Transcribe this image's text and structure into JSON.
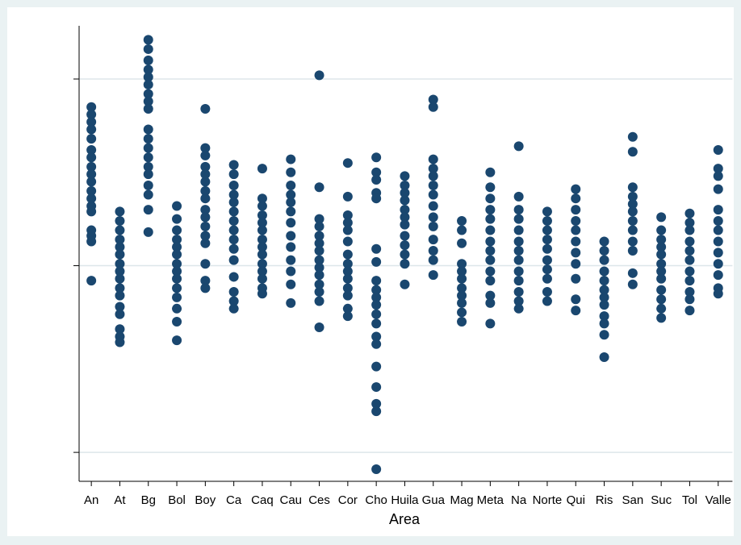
{
  "chart_data": {
    "type": "strip",
    "x_label": "Area",
    "color": "#1a476f",
    "grid": true,
    "categories": [
      "An",
      "At",
      "Bg",
      "Bol",
      "Boy",
      "Ca",
      "Caq",
      "Cau",
      "Ces",
      "Cor",
      "Cho",
      "Huila",
      "Gua",
      "Mag",
      "Meta",
      "Na",
      "Norte",
      "Qui",
      "Ris",
      "San",
      "Suc",
      "Tol",
      "Valle"
    ],
    "values": [
      [
        0.85,
        0.81,
        0.77,
        0.73,
        0.68,
        0.62,
        0.58,
        0.53,
        0.49,
        0.45,
        0.4,
        0.36,
        0.32,
        0.29,
        0.19,
        0.16,
        0.13,
        -0.08
      ],
      [
        0.29,
        0.24,
        0.19,
        0.14,
        0.1,
        0.06,
        0.01,
        -0.03,
        -0.07,
        -0.12,
        -0.16,
        -0.22,
        -0.26,
        -0.34,
        -0.38,
        -0.41
      ],
      [
        1.21,
        1.16,
        1.1,
        1.05,
        1.01,
        0.97,
        0.92,
        0.88,
        0.84,
        0.73,
        0.68,
        0.63,
        0.58,
        0.53,
        0.49,
        0.43,
        0.38,
        0.3,
        0.18
      ],
      [
        0.32,
        0.25,
        0.19,
        0.14,
        0.1,
        0.06,
        0.01,
        -0.03,
        -0.07,
        -0.12,
        -0.17,
        -0.23,
        -0.3,
        -0.4
      ],
      [
        0.84,
        0.63,
        0.59,
        0.53,
        0.49,
        0.45,
        0.4,
        0.36,
        0.3,
        0.26,
        0.21,
        0.16,
        0.12,
        0.01,
        -0.08,
        -0.12
      ],
      [
        0.54,
        0.49,
        0.43,
        0.38,
        0.34,
        0.29,
        0.24,
        0.19,
        0.14,
        0.09,
        0.03,
        -0.06,
        -0.14,
        -0.19,
        -0.23
      ],
      [
        0.52,
        0.36,
        0.32,
        0.27,
        0.23,
        0.19,
        0.14,
        0.1,
        0.06,
        0.01,
        -0.03,
        -0.07,
        -0.12,
        -0.15
      ],
      [
        0.57,
        0.5,
        0.43,
        0.38,
        0.34,
        0.29,
        0.23,
        0.16,
        0.1,
        0.03,
        -0.03,
        -0.1,
        -0.2
      ],
      [
        1.02,
        0.42,
        0.25,
        0.21,
        0.16,
        0.12,
        0.08,
        0.03,
        -0.01,
        -0.05,
        -0.1,
        -0.14,
        -0.19,
        -0.33
      ],
      [
        0.55,
        0.37,
        0.27,
        0.23,
        0.19,
        0.13,
        0.06,
        0.01,
        -0.03,
        -0.07,
        -0.12,
        -0.16,
        -0.23,
        -0.27
      ],
      [
        0.58,
        0.5,
        0.46,
        0.39,
        0.36,
        0.09,
        0.02,
        -0.08,
        -0.13,
        -0.17,
        -0.21,
        -0.26,
        -0.31,
        -0.38,
        -0.42,
        -0.54,
        -0.65,
        -0.74,
        -0.78,
        -1.09
      ],
      [
        0.48,
        0.43,
        0.39,
        0.35,
        0.3,
        0.26,
        0.22,
        0.16,
        0.11,
        0.06,
        0.01,
        -0.1
      ],
      [
        0.89,
        0.85,
        0.57,
        0.52,
        0.48,
        0.43,
        0.38,
        0.32,
        0.26,
        0.21,
        0.14,
        0.08,
        0.03,
        -0.05
      ],
      [
        0.24,
        0.19,
        0.12,
        0.01,
        -0.03,
        -0.07,
        -0.12,
        -0.16,
        -0.2,
        -0.25,
        -0.3
      ],
      [
        0.5,
        0.42,
        0.36,
        0.3,
        0.25,
        0.19,
        0.13,
        0.08,
        0.03,
        -0.03,
        -0.08,
        -0.16,
        -0.2,
        -0.31
      ],
      [
        0.64,
        0.37,
        0.3,
        0.25,
        0.19,
        0.13,
        0.08,
        0.03,
        -0.03,
        -0.08,
        -0.14,
        -0.19,
        -0.23
      ],
      [
        0.29,
        0.24,
        0.19,
        0.14,
        0.09,
        0.03,
        -0.02,
        -0.07,
        -0.14,
        -0.19
      ],
      [
        0.41,
        0.36,
        0.3,
        0.24,
        0.19,
        0.13,
        0.07,
        0.01,
        -0.07,
        -0.18,
        -0.24
      ],
      [
        0.13,
        0.08,
        0.03,
        -0.03,
        -0.08,
        -0.13,
        -0.17,
        -0.21,
        -0.27,
        -0.31,
        -0.37,
        -0.49
      ],
      [
        0.69,
        0.61,
        0.42,
        0.37,
        0.33,
        0.29,
        0.24,
        0.19,
        0.13,
        0.08,
        -0.04,
        -0.1
      ],
      [
        0.26,
        0.19,
        0.14,
        0.1,
        0.06,
        0.01,
        -0.03,
        -0.07,
        -0.13,
        -0.18,
        -0.23,
        -0.28
      ],
      [
        0.28,
        0.23,
        0.19,
        0.13,
        0.08,
        0.03,
        -0.03,
        -0.08,
        -0.14,
        -0.18,
        -0.24
      ],
      [
        0.62,
        0.52,
        0.48,
        0.41,
        0.3,
        0.24,
        0.19,
        0.13,
        0.07,
        0.01,
        -0.05,
        -0.12,
        -0.15
      ]
    ],
    "ylim": [
      -1.155,
      1.285
    ],
    "yticks": [
      -1,
      0,
      1
    ]
  }
}
